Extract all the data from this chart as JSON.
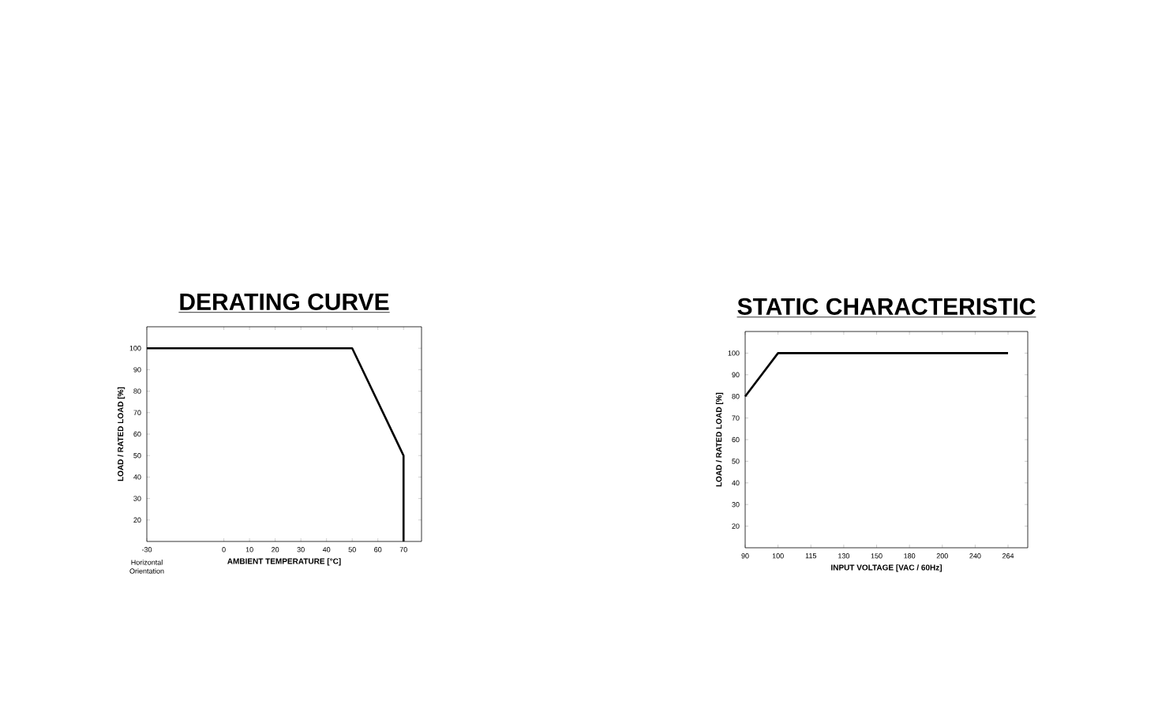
{
  "chart_data": [
    {
      "type": "line",
      "title": "DERATING CURVE",
      "xlabel": "AMBIENT TEMPERATURE [°C]",
      "ylabel": "LOAD / RATED LOAD [%]",
      "x": [
        -30,
        50,
        70,
        70
      ],
      "values": [
        100,
        100,
        50,
        10
      ],
      "color": "#000000",
      "xlim": [
        -30,
        77
      ],
      "xticks": [
        -30,
        0,
        10,
        20,
        30,
        40,
        50,
        60,
        70
      ],
      "ylim": [
        10,
        110
      ],
      "yticks": [
        20,
        30,
        40,
        50,
        60,
        70,
        80,
        90,
        100
      ],
      "annotations": [
        "Horizontal Orientation"
      ]
    },
    {
      "type": "line",
      "title": "STATIC CHARACTERISTIC",
      "xlabel": "INPUT VOLTAGE [VAC / 60Hz]",
      "ylabel": "LOAD / RATED LOAD [%]",
      "categories": [
        "90",
        "100",
        "115",
        "130",
        "150",
        "180",
        "200",
        "240",
        "264"
      ],
      "values": [
        80,
        100,
        100,
        100,
        100,
        100,
        100,
        100,
        100
      ],
      "color": "#000000",
      "ylim": [
        10,
        110
      ],
      "yticks": [
        20,
        30,
        40,
        50,
        60,
        70,
        80,
        90,
        100
      ]
    }
  ]
}
